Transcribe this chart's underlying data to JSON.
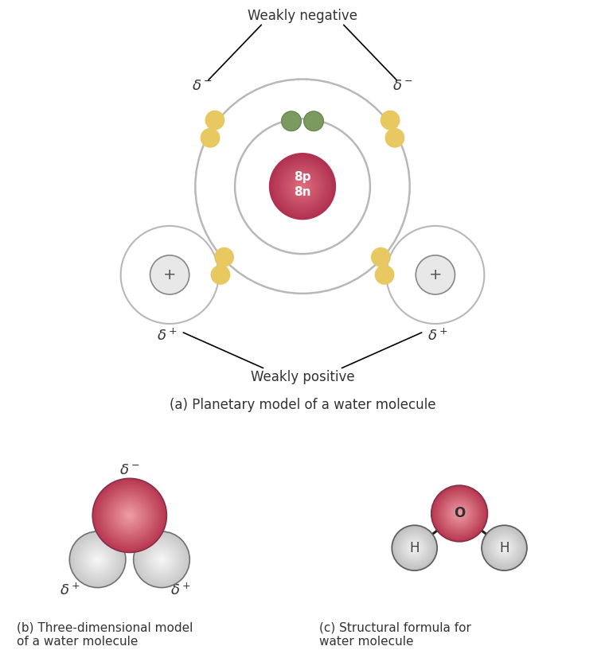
{
  "bg_color": "#ffffff",
  "panel_a_label": "(a) Planetary model of a water molecule",
  "panel_b_label": "(b) Three-dimensional model\nof a water molecule",
  "panel_c_label": "(c) Structural formula for\nwater molecule",
  "weakly_negative": "Weakly negative",
  "weakly_positive": "Weakly positive",
  "nucleus_color": "#c85060",
  "nucleus_text": "8p\n8n",
  "nucleus_text_color": "#ffffff",
  "electron_color_oxygen": "#7a9a60",
  "electron_color_hydrogen": "#e8c860",
  "hydrogen_nucleus_color": "#e0e0e0",
  "orbit_color": "#b8b8b8",
  "oxygen_3d_color_light": "#f0a0a8",
  "oxygen_3d_color_dark": "#c04060",
  "hydrogen_3d_color_light": "#f0f0f0",
  "hydrogen_3d_color_dark": "#c0c0c0",
  "bond_color": "#202020",
  "label_color": "#333333",
  "annotation_color": "#333333",
  "delta_fontsize": 13,
  "annotation_fontsize": 12,
  "panel_label_fontsize": 12
}
